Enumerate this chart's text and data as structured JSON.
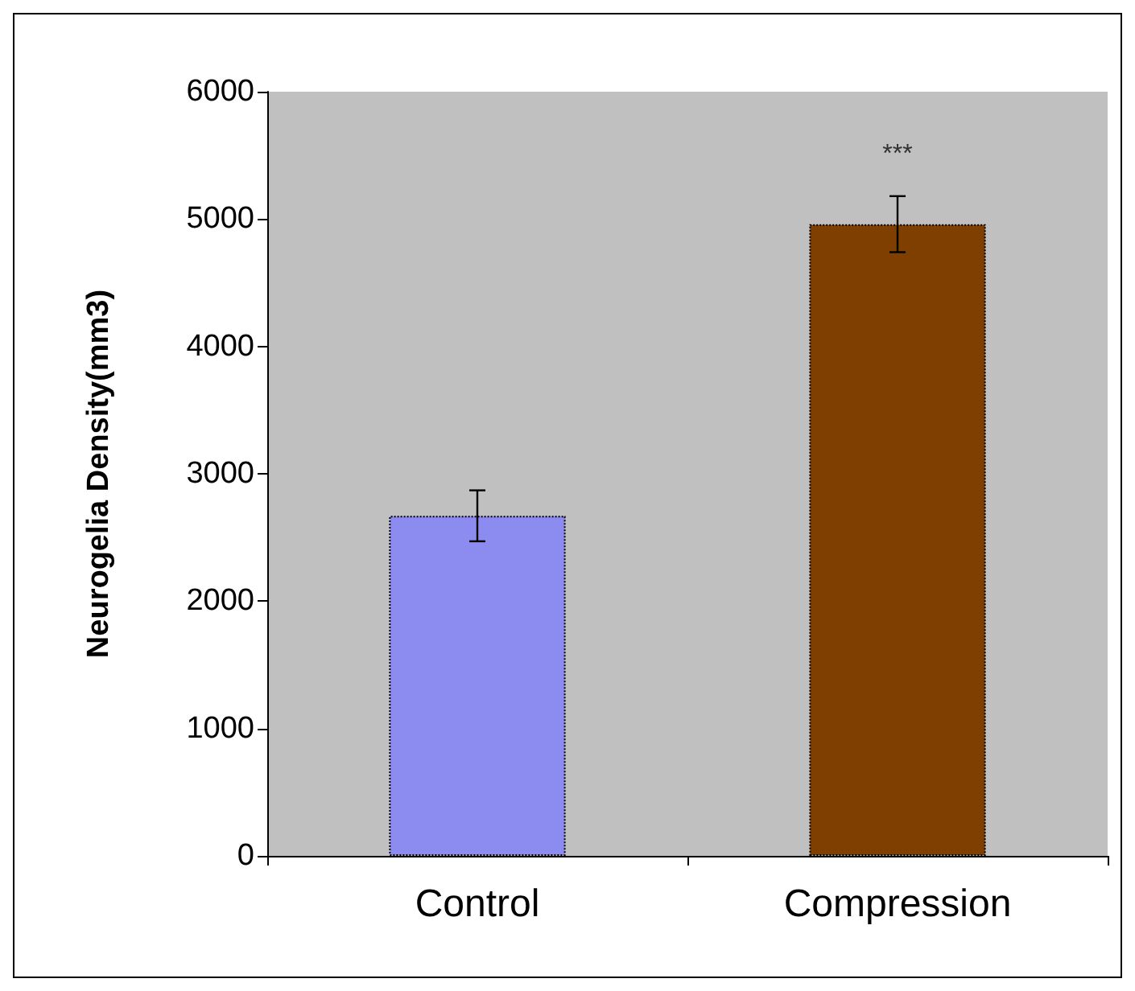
{
  "chart_data": {
    "type": "bar",
    "ylabel": "Neurogelia Density(mm3)",
    "categories": [
      "Control",
      "Compression"
    ],
    "values": [
      2670,
      4960
    ],
    "colors": [
      "#8c8cf0",
      "#7f3f00"
    ],
    "errors": [
      200,
      220
    ],
    "ylim": [
      0,
      6000
    ],
    "yticks": [
      0,
      1000,
      2000,
      3000,
      4000,
      5000,
      6000
    ],
    "grid": false,
    "annotations": [
      "***"
    ]
  }
}
